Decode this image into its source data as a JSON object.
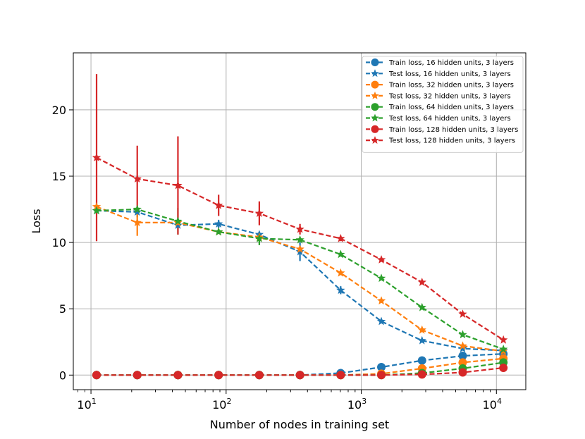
{
  "chart_data": {
    "type": "line",
    "xscale": "log",
    "xlabel": "Number of nodes in training set",
    "ylabel": "Loss",
    "xlim": [
      7.4,
      16500
    ],
    "ylim": [
      -1.1,
      24.3
    ],
    "x": [
      11,
      22,
      44,
      88,
      176,
      352,
      704,
      1408,
      2816,
      5632,
      11264
    ],
    "xticks": [
      {
        "value": 10,
        "base": "10",
        "exp": "1"
      },
      {
        "value": 100,
        "base": "10",
        "exp": "2"
      },
      {
        "value": 1000,
        "base": "10",
        "exp": "3"
      },
      {
        "value": 10000,
        "base": "10",
        "exp": "4"
      }
    ],
    "yticks": [
      {
        "value": 0,
        "label": "0"
      },
      {
        "value": 5,
        "label": "5"
      },
      {
        "value": 10,
        "label": "10"
      },
      {
        "value": 15,
        "label": "15"
      },
      {
        "value": 20,
        "label": "20"
      }
    ],
    "grid": true,
    "legend_position": "top-right",
    "series": [
      {
        "name": "Train loss, 16 hidden units, 3 layers",
        "color": "#1f77b4",
        "marker": "circle",
        "values": [
          0,
          0,
          0,
          0,
          0,
          0,
          0.15,
          0.6,
          1.1,
          1.45,
          1.6
        ],
        "errors": [
          0,
          0,
          0,
          0,
          0,
          0,
          0,
          0,
          0,
          0,
          0
        ]
      },
      {
        "name": "Test loss, 16 hidden units, 3 layers",
        "color": "#1f77b4",
        "marker": "star",
        "values": [
          12.4,
          12.3,
          11.3,
          11.4,
          10.6,
          9.3,
          6.4,
          4.05,
          2.6,
          2.0,
          1.85
        ],
        "errors": [
          0,
          0.4,
          0,
          0.3,
          0,
          0.7,
          0.3,
          0,
          0,
          0,
          0
        ]
      },
      {
        "name": "Train loss, 32 hidden units, 3 layers",
        "color": "#ff7f0e",
        "marker": "circle",
        "values": [
          0,
          0,
          0,
          0,
          0,
          0,
          0,
          0.1,
          0.5,
          0.95,
          1.25
        ],
        "errors": [
          0,
          0,
          0,
          0,
          0,
          0,
          0,
          0,
          0,
          0,
          0
        ]
      },
      {
        "name": "Test loss, 32 hidden units, 3 layers",
        "color": "#ff7f0e",
        "marker": "star",
        "values": [
          12.7,
          11.5,
          11.5,
          10.8,
          10.4,
          9.5,
          7.7,
          5.6,
          3.4,
          2.2,
          1.8
        ],
        "errors": [
          0,
          1.0,
          0,
          0,
          0,
          0,
          0,
          0,
          0,
          0,
          0
        ]
      },
      {
        "name": "Train loss, 64 hidden units, 3 layers",
        "color": "#2ca02c",
        "marker": "circle",
        "values": [
          0,
          0,
          0,
          0,
          0,
          0,
          0,
          0,
          0.15,
          0.5,
          0.95
        ],
        "errors": [
          0,
          0,
          0,
          0,
          0,
          0,
          0,
          0,
          0,
          0,
          0
        ]
      },
      {
        "name": "Test loss, 64 hidden units, 3 layers",
        "color": "#2ca02c",
        "marker": "star",
        "values": [
          12.4,
          12.5,
          11.6,
          10.8,
          10.3,
          10.2,
          9.1,
          7.3,
          5.1,
          3.05,
          1.95
        ],
        "errors": [
          0,
          0,
          1.0,
          0,
          0.5,
          0,
          0,
          0,
          0,
          0,
          0
        ]
      },
      {
        "name": "Train loss, 128 hidden units, 3 layers",
        "color": "#d62728",
        "marker": "circle",
        "values": [
          0,
          0,
          0,
          0,
          0,
          0,
          0,
          0,
          0.05,
          0.2,
          0.55
        ],
        "errors": [
          0,
          0,
          0,
          0,
          0,
          0,
          0,
          0,
          0,
          0,
          0
        ]
      },
      {
        "name": "Test loss, 128 hidden units, 3 layers",
        "color": "#d62728",
        "marker": "star",
        "values": [
          16.4,
          14.8,
          14.3,
          12.8,
          12.2,
          11.0,
          10.3,
          8.7,
          7.0,
          4.6,
          2.65
        ],
        "errors": [
          6.3,
          2.5,
          3.7,
          0.8,
          0.9,
          0.4,
          0.2,
          0,
          0,
          0,
          0
        ]
      }
    ]
  }
}
